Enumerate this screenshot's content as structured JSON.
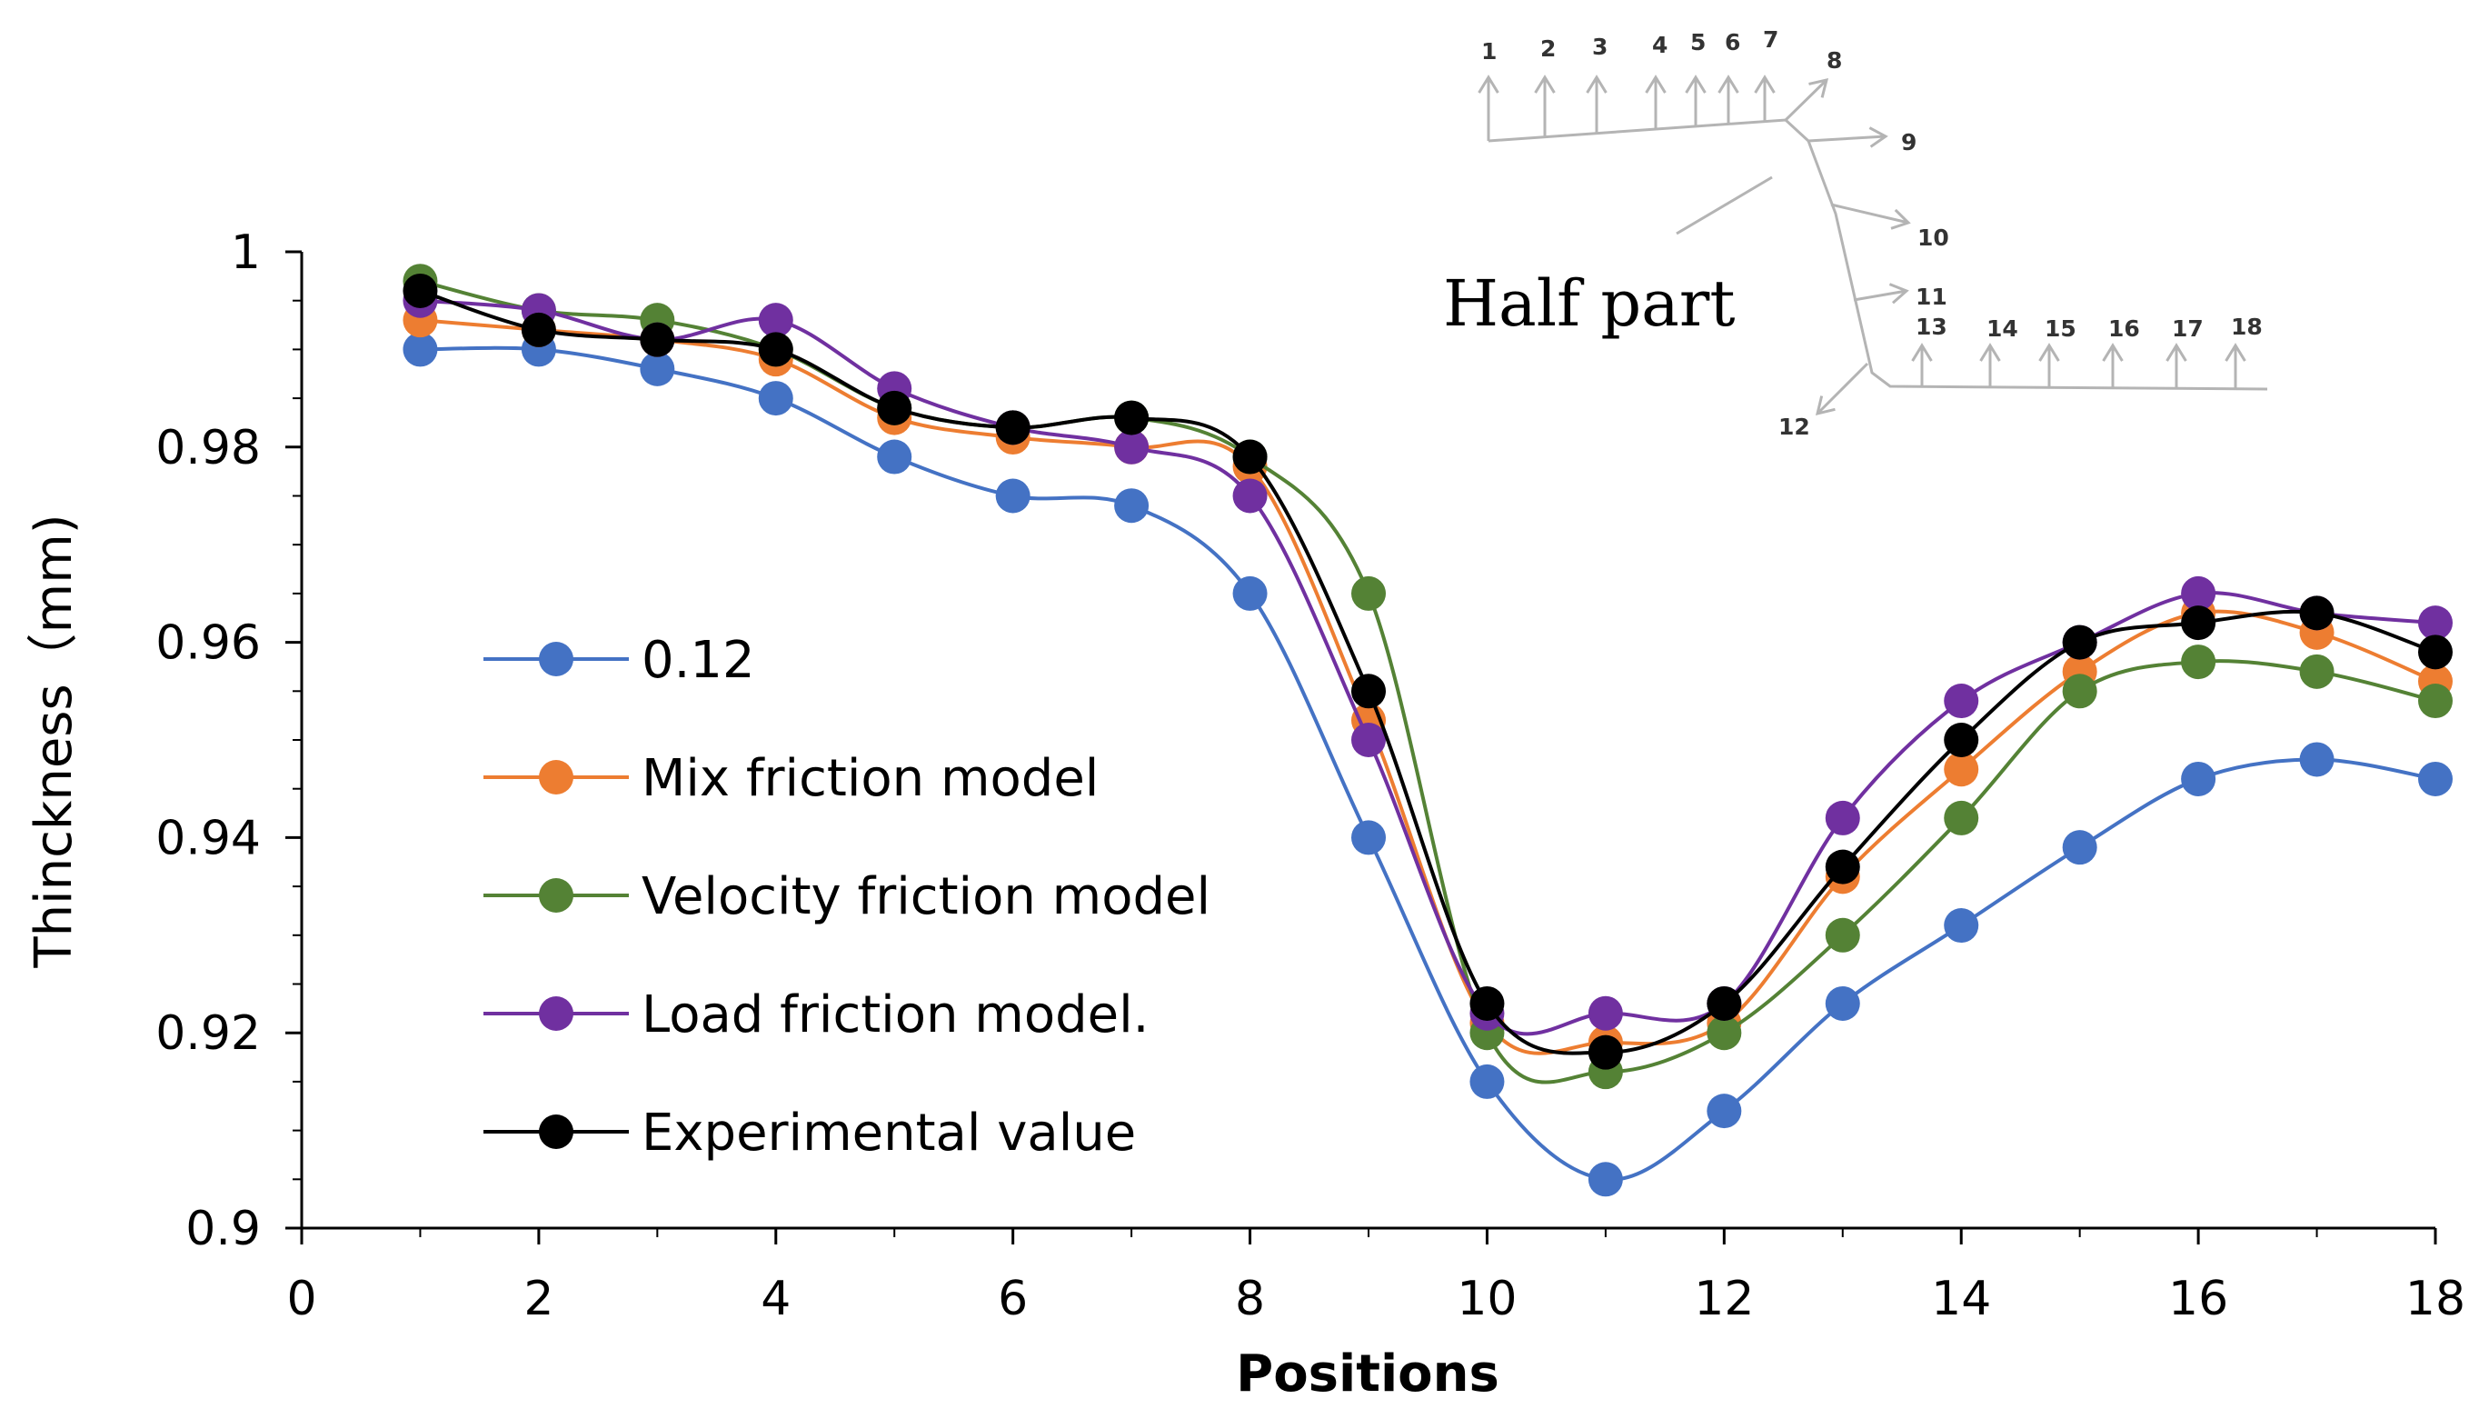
{
  "chart_data": {
    "type": "line",
    "title": "",
    "xlabel": "Positions",
    "ylabel": "Thinckness（mm)",
    "xlim": [
      0,
      18
    ],
    "ylim": [
      0.9,
      1.0
    ],
    "xticks": [
      "0",
      "2",
      "4",
      "6",
      "8",
      "10",
      "12",
      "14",
      "16",
      "18"
    ],
    "yticks": [
      "0.9",
      "0.92",
      "0.94",
      "0.96",
      "0.98",
      "1"
    ],
    "x": [
      1,
      2,
      3,
      4,
      5,
      6,
      7,
      8,
      9,
      10,
      11,
      12,
      13,
      14,
      15,
      16,
      17,
      18
    ],
    "legend_position": "center-left",
    "series": [
      {
        "name": "0.12",
        "color": "#4472c4",
        "values": [
          0.99,
          0.99,
          0.988,
          0.985,
          0.979,
          0.975,
          0.974,
          0.965,
          0.94,
          0.915,
          0.905,
          0.912,
          0.923,
          0.931,
          0.939,
          0.946,
          0.948,
          0.946
        ]
      },
      {
        "name": "Mix friction model",
        "color": "#ed7d31",
        "values": [
          0.993,
          0.992,
          0.991,
          0.989,
          0.983,
          0.981,
          0.98,
          0.978,
          0.952,
          0.921,
          0.919,
          0.921,
          0.936,
          0.947,
          0.957,
          0.963,
          0.961,
          0.956
        ]
      },
      {
        "name": "Velocity friction model",
        "color": "#548235",
        "values": [
          0.997,
          0.994,
          0.993,
          0.99,
          0.984,
          0.982,
          0.983,
          0.979,
          0.965,
          0.92,
          0.916,
          0.92,
          0.93,
          0.942,
          0.955,
          0.958,
          0.957,
          0.954
        ]
      },
      {
        "name": " Load friction model.",
        "color": "#7030a0",
        "values": [
          0.995,
          0.994,
          0.991,
          0.993,
          0.986,
          0.982,
          0.98,
          0.975,
          0.95,
          0.922,
          0.922,
          0.923,
          0.942,
          0.954,
          0.96,
          0.965,
          0.963,
          0.962
        ]
      },
      {
        "name": "Experimental value",
        "color": "#000000",
        "values": [
          0.996,
          0.992,
          0.991,
          0.99,
          0.984,
          0.982,
          0.983,
          0.979,
          0.955,
          0.923,
          0.918,
          0.923,
          0.937,
          0.95,
          0.96,
          0.962,
          0.963,
          0.959
        ]
      }
    ],
    "inset": {
      "caption": "Half part",
      "position_labels": [
        "1",
        "2",
        "3",
        "4",
        "5",
        "6",
        "7",
        "8",
        "9",
        "10",
        "11",
        "12",
        "13",
        "14",
        "15",
        "16",
        "17",
        "18"
      ]
    }
  }
}
